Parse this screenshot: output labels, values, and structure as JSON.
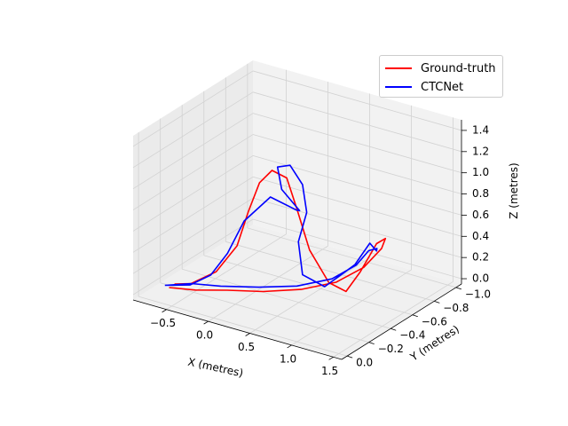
{
  "chart_data": {
    "type": "line",
    "projection": "3d",
    "xlabel": "X (metres)",
    "ylabel": "Y (metres)",
    "zlabel": "Z (metres)",
    "xlim": [
      -0.9,
      1.6
    ],
    "ylim": [
      -1.05,
      0.05
    ],
    "zlim": [
      -0.05,
      1.5
    ],
    "x_ticks": [
      -0.5,
      0.0,
      0.5,
      1.0,
      1.5
    ],
    "y_ticks": [
      -1.0,
      -0.8,
      -0.6,
      -0.4,
      -0.2,
      0.0
    ],
    "z_ticks": [
      0.0,
      0.2,
      0.4,
      0.6,
      0.8,
      1.0,
      1.2,
      1.4
    ],
    "x_tick_labels": [
      "−0.5",
      "0.0",
      "0.5",
      "1.0",
      "1.5"
    ],
    "y_tick_labels": [
      "−1.0",
      "−0.8",
      "−0.6",
      "−0.4",
      "−0.2",
      "0.0"
    ],
    "z_tick_labels": [
      "0.0",
      "0.2",
      "0.4",
      "0.6",
      "0.8",
      "1.0",
      "1.2",
      "1.4"
    ],
    "grid": true,
    "legend_position": "top-right",
    "series": [
      {
        "name": "Ground-truth",
        "color": "#ff0000",
        "points": [
          [
            -0.6,
            -0.05,
            0.07
          ],
          [
            -0.35,
            -0.1,
            0.07
          ],
          [
            -0.1,
            -0.2,
            0.06
          ],
          [
            0.2,
            -0.3,
            0.05
          ],
          [
            0.5,
            -0.42,
            0.06
          ],
          [
            0.75,
            -0.55,
            0.1
          ],
          [
            0.95,
            -0.65,
            0.22
          ],
          [
            1.1,
            -0.7,
            0.4
          ],
          [
            1.25,
            -0.62,
            0.58
          ],
          [
            1.3,
            -0.5,
            0.62
          ],
          [
            1.3,
            -0.35,
            0.45
          ],
          [
            1.3,
            -0.22,
            0.35
          ],
          [
            1.25,
            -0.1,
            0.5
          ],
          [
            1.15,
            0.0,
            0.85
          ],
          [
            1.0,
            0.0,
            1.2
          ],
          [
            0.85,
            -0.02,
            1.45
          ],
          [
            0.7,
            0.0,
            1.5
          ],
          [
            0.55,
            0.0,
            1.35
          ],
          [
            0.35,
            -0.05,
            1.0
          ],
          [
            0.15,
            -0.1,
            0.6
          ],
          [
            -0.1,
            -0.1,
            0.3
          ],
          [
            -0.4,
            -0.1,
            0.12
          ],
          [
            -0.6,
            -0.1,
            0.07
          ]
        ]
      },
      {
        "name": "CTCNet",
        "color": "#0000ff",
        "points": [
          [
            -0.65,
            -0.05,
            0.08
          ],
          [
            -0.4,
            -0.1,
            0.12
          ],
          [
            -0.15,
            -0.18,
            0.1
          ],
          [
            0.15,
            -0.3,
            0.08
          ],
          [
            0.45,
            -0.42,
            0.08
          ],
          [
            0.7,
            -0.55,
            0.12
          ],
          [
            0.9,
            -0.62,
            0.25
          ],
          [
            1.05,
            -0.62,
            0.42
          ],
          [
            1.2,
            -0.58,
            0.5
          ],
          [
            1.3,
            -0.5,
            0.55
          ],
          [
            1.35,
            -0.4,
            0.7
          ],
          [
            1.3,
            -0.3,
            0.55
          ],
          [
            1.2,
            -0.1,
            0.45
          ],
          [
            1.0,
            -0.05,
            0.55
          ],
          [
            0.95,
            -0.05,
            0.85
          ],
          [
            1.05,
            -0.05,
            1.15
          ],
          [
            1.0,
            -0.05,
            1.4
          ],
          [
            0.85,
            -0.05,
            1.55
          ],
          [
            0.7,
            -0.05,
            1.5
          ],
          [
            0.75,
            -0.05,
            1.3
          ],
          [
            0.9,
            -0.1,
            1.1
          ],
          [
            0.8,
            -0.15,
            1.05
          ],
          [
            0.55,
            -0.1,
            1.15
          ],
          [
            0.3,
            -0.05,
            0.9
          ],
          [
            0.1,
            -0.05,
            0.55
          ],
          [
            -0.1,
            -0.05,
            0.3
          ],
          [
            -0.35,
            -0.05,
            0.15
          ],
          [
            -0.65,
            -0.05,
            0.08
          ]
        ]
      }
    ]
  }
}
